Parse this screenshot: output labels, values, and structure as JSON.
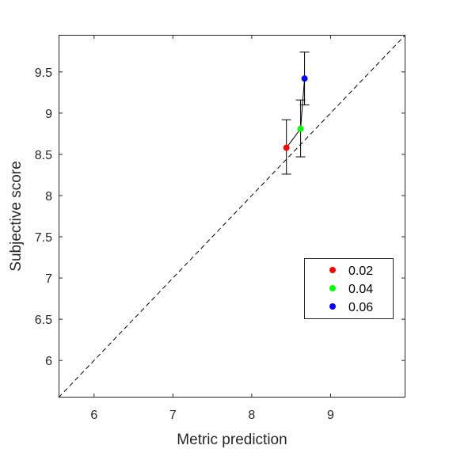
{
  "chart_data": {
    "type": "scatter",
    "title": "",
    "xlabel": "Metric prediction",
    "ylabel": "Subjective score",
    "xlim": [
      5.55,
      9.95
    ],
    "ylim": [
      5.55,
      9.95
    ],
    "xticks": [
      6,
      7,
      8,
      9
    ],
    "yticks": [
      6,
      6.5,
      7,
      7.5,
      8,
      8.5,
      9,
      9.5
    ],
    "xtick_labels": [
      "6",
      "7",
      "8",
      "9"
    ],
    "ytick_labels": [
      "6",
      "6.5",
      "7",
      "7.5",
      "8",
      "8.5",
      "9",
      "9.5"
    ],
    "grid": false,
    "legend_position": "lower-right",
    "reference_line": "identity (dashed)",
    "connect_points": true,
    "series": [
      {
        "name": "0.02",
        "color": "#ff0000",
        "x": 8.44,
        "y": 8.58,
        "y_err": [
          8.26,
          8.92
        ]
      },
      {
        "name": "0.04",
        "color": "#00ff00",
        "x": 8.62,
        "y": 8.81,
        "y_err": [
          8.47,
          9.16
        ]
      },
      {
        "name": "0.06",
        "color": "#0000ff",
        "x": 8.67,
        "y": 9.42,
        "y_err": [
          9.1,
          9.74
        ]
      }
    ]
  }
}
